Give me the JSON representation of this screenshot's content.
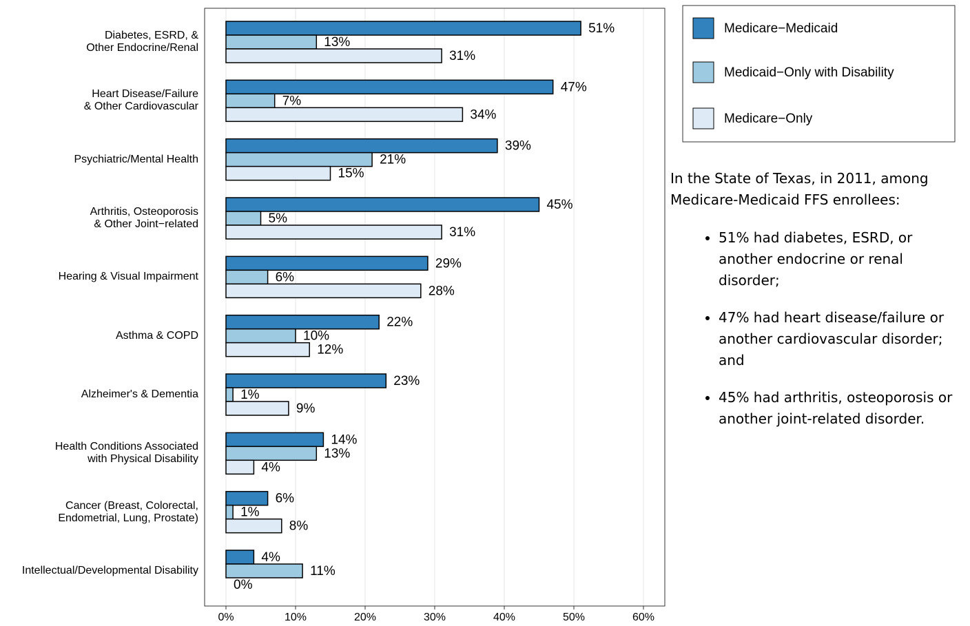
{
  "chart_data": {
    "type": "hbar",
    "categories": [
      "Diabetes, ESRD, &\nOther Endocrine/Renal",
      "Heart Disease/Failure\n& Other Cardiovascular",
      "Psychiatric/Mental Health",
      "Arthritis, Osteoporosis\n& Other Joint−related",
      "Hearing & Visual Impairment",
      "Asthma & COPD",
      "Alzheimer's & Dementia",
      "Health Conditions Associated\nwith Physical Disability",
      "Cancer (Breast, Colorectal,\nEndometrial, Lung, Prostate)",
      "Intellectual/Developmental Disability"
    ],
    "series": [
      {
        "name": "Medicare−Medicaid",
        "color": "#3182bd",
        "values": [
          51,
          47,
          39,
          45,
          29,
          22,
          23,
          14,
          6,
          4
        ],
        "value_labels": [
          "51%",
          "47%",
          "39%",
          "45%",
          "29%",
          "22%",
          "23%",
          "14%",
          "6%",
          "4%"
        ]
      },
      {
        "name": "Medicaid−Only with Disability",
        "color": "#9ecae1",
        "values": [
          13,
          7,
          21,
          5,
          6,
          10,
          1,
          13,
          1,
          11
        ],
        "value_labels": [
          "13%",
          "7%",
          "21%",
          "5%",
          "6%",
          "10%",
          "1%",
          "13%",
          "1%",
          "11%"
        ]
      },
      {
        "name": "Medicare−Only",
        "color": "#deebf7",
        "values": [
          31,
          34,
          15,
          31,
          28,
          12,
          9,
          4,
          8,
          0
        ],
        "value_labels": [
          "31%",
          "34%",
          "15%",
          "31%",
          "28%",
          "12%",
          "9%",
          "4%",
          "8%",
          "0%"
        ]
      }
    ],
    "xlim": [
      -3.07,
      63.07
    ],
    "xticks": [
      {
        "value": 0,
        "label": "0%"
      },
      {
        "value": 10,
        "label": "10%"
      },
      {
        "value": 20,
        "label": "20%"
      },
      {
        "value": 30,
        "label": "30%"
      },
      {
        "value": 40,
        "label": "40%"
      },
      {
        "value": 50,
        "label": "50%"
      },
      {
        "value": 60,
        "label": "60%"
      }
    ],
    "grid": true,
    "legend": "top-right"
  },
  "summary": {
    "intro": "In the State of Texas, in 2011, among Medicare-Medicaid FFS enrollees:",
    "bullets": [
      "51% had diabetes, ESRD, or another endocrine or renal disorder;",
      "47% had heart disease/failure or another cardiovascular disorder; and",
      "45% had arthritis, osteoporosis or another joint-related disorder."
    ]
  }
}
